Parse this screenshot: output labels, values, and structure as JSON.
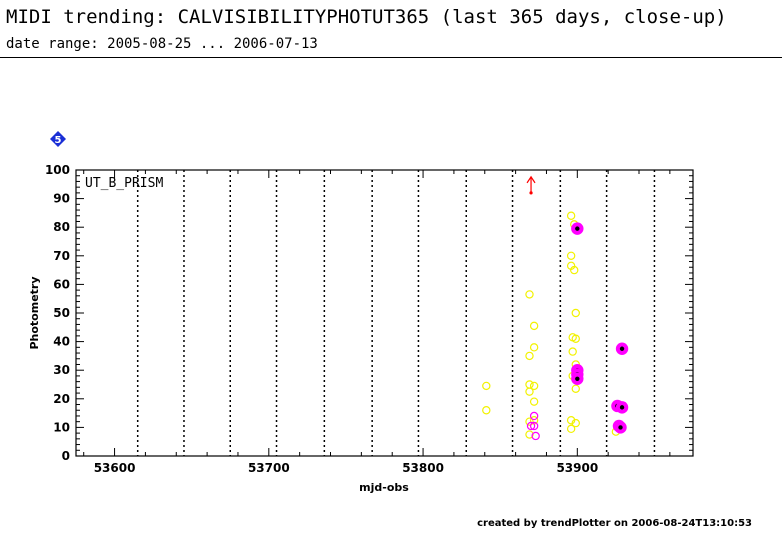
{
  "header": {
    "title": "MIDI trending: CALVISIBILITYPHOTUT365 (last 365 days, close-up)",
    "subtitle": "date range: 2005-08-25 ... 2006-07-13"
  },
  "footer": {
    "text": "created by trendPlotter on 2006-08-24T13:10:53"
  },
  "colors": {
    "yellow_marker": "#f2f200",
    "magenta_marker": "#ff00ff",
    "black_dot": "#000000",
    "arrow": "#ff0000",
    "badge": "#1a2fd6"
  },
  "chart_data": {
    "type": "scatter",
    "badge": "5",
    "panel_label": "UT_B_PRISM",
    "xlabel": "mjd-obs",
    "ylabel": "Photometry",
    "xlim": [
      53575,
      53975
    ],
    "ylim": [
      0,
      100
    ],
    "x_ticks": [
      53600,
      53700,
      53800,
      53900
    ],
    "y_ticks": [
      0,
      10,
      20,
      30,
      40,
      50,
      60,
      70,
      80,
      90,
      100
    ],
    "grid": "dotted vertical lines",
    "vlines": [
      53615,
      53645,
      53675,
      53705,
      53736,
      53767,
      53797,
      53828,
      53858,
      53889,
      53919,
      53950
    ],
    "series": [
      {
        "marker": "open yellow circle",
        "points": [
          [
            53841,
            24.5
          ],
          [
            53841,
            16
          ],
          [
            53869,
            56.5
          ],
          [
            53869,
            35
          ],
          [
            53869,
            25
          ],
          [
            53869,
            22.5
          ],
          [
            53869,
            12
          ],
          [
            53869,
            7.5
          ],
          [
            53872,
            45.5
          ],
          [
            53872,
            38
          ],
          [
            53872,
            24.5
          ],
          [
            53872,
            19
          ],
          [
            53872,
            12.5
          ],
          [
            53896,
            84
          ],
          [
            53898,
            81
          ],
          [
            53896,
            70
          ],
          [
            53896,
            66.5
          ],
          [
            53898,
            65
          ],
          [
            53899,
            50
          ],
          [
            53897,
            41.5
          ],
          [
            53899,
            41
          ],
          [
            53897,
            36.5
          ],
          [
            53899,
            32
          ],
          [
            53897,
            28
          ],
          [
            53899,
            23.5
          ],
          [
            53896,
            12.5
          ],
          [
            53899,
            11.5
          ],
          [
            53896,
            9.5
          ],
          [
            53925,
            8.5
          ]
        ]
      },
      {
        "marker": "open magenta circle",
        "points": [
          [
            53872,
            14
          ],
          [
            53870,
            10.5
          ],
          [
            53872,
            10.5
          ],
          [
            53873,
            7
          ]
        ]
      },
      {
        "marker": "filled magenta circle with black dot",
        "points": [
          [
            53900,
            79.5
          ],
          [
            53900,
            30
          ],
          [
            53900,
            28.5
          ],
          [
            53900,
            27
          ],
          [
            53929,
            37.5
          ],
          [
            53926,
            17.5
          ],
          [
            53929,
            17
          ],
          [
            53927,
            10.5
          ],
          [
            53928,
            10
          ]
        ]
      }
    ],
    "annotations": [
      {
        "type": "red up arrow",
        "x": 53870,
        "y": 92
      }
    ]
  }
}
